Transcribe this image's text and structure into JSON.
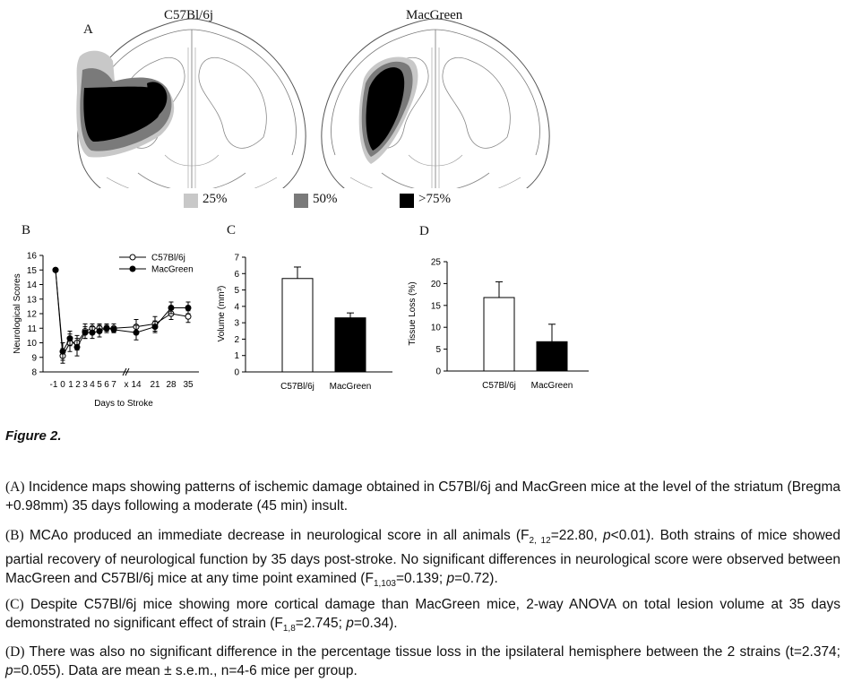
{
  "panelA": {
    "letter": "A",
    "strain_left": "C57Bl/6j",
    "strain_right": "MacGreen",
    "legend": [
      {
        "label": "25%",
        "color": "#c8c8c8"
      },
      {
        "label": "50%",
        "color": "#7a7a7a"
      },
      {
        "label": ">75%",
        "color": "#000000"
      }
    ]
  },
  "panelB": {
    "letter": "B",
    "chart_data": {
      "type": "line",
      "title": "",
      "xlabel": "Days to Stroke",
      "ylabel": "Neurological Scores",
      "ylim": [
        8,
        16
      ],
      "yticks": [
        8,
        9,
        10,
        11,
        12,
        13,
        14,
        15,
        16
      ],
      "xtick_labels": [
        "-1",
        "0",
        "1",
        "2",
        "3",
        "4",
        "5",
        "6",
        "7",
        "x",
        "14",
        "21",
        "28",
        "35"
      ],
      "x": [
        -1,
        0,
        1,
        2,
        3,
        4,
        5,
        6,
        7,
        14,
        21,
        28,
        35
      ],
      "series": [
        {
          "name": "C57Bl/6j",
          "marker": "open-circle",
          "values": [
            15,
            9.1,
            10.0,
            10.0,
            10.8,
            11.0,
            11.0,
            11.0,
            11.0,
            11.1,
            11.3,
            12.0,
            11.8
          ],
          "errors": [
            0,
            0.5,
            0.6,
            0.5,
            0.5,
            0.3,
            0.3,
            0.3,
            0.3,
            0.5,
            0.5,
            0.4,
            0.4
          ]
        },
        {
          "name": "MacGreen",
          "marker": "filled-circle",
          "values": [
            15,
            9.4,
            10.3,
            9.7,
            10.7,
            10.7,
            10.8,
            11.0,
            10.9,
            10.7,
            11.1,
            12.4,
            12.4
          ],
          "errors": [
            0,
            0.6,
            0.5,
            0.6,
            0.4,
            0.4,
            0.4,
            0.2,
            0.2,
            0.5,
            0.4,
            0.4,
            0.4
          ]
        }
      ]
    }
  },
  "panelC": {
    "letter": "C",
    "chart_data": {
      "type": "bar",
      "categories": [
        "C57Bl/6j",
        "MacGreen"
      ],
      "values": [
        5.7,
        3.3
      ],
      "errors": [
        0.7,
        0.3
      ],
      "colors": [
        "#ffffff",
        "#000000"
      ],
      "title": "",
      "xlabel": "",
      "ylabel": "Volume (mm³)",
      "ylim": [
        0,
        7
      ],
      "yticks": [
        0,
        1,
        2,
        3,
        4,
        5,
        6,
        7
      ]
    }
  },
  "panelD": {
    "letter": "D",
    "chart_data": {
      "type": "bar",
      "categories": [
        "C57Bl/6j",
        "MacGreen"
      ],
      "values": [
        16.8,
        6.7
      ],
      "errors": [
        3.6,
        4.0
      ],
      "colors": [
        "#ffffff",
        "#000000"
      ],
      "title": "",
      "xlabel": "",
      "ylabel": "Tissue Loss (%)",
      "ylim": [
        0,
        25
      ],
      "yticks": [
        0,
        5,
        10,
        15,
        20,
        25
      ]
    }
  },
  "figure_title": "Figure 2.",
  "captions": {
    "a": {
      "label": "(A)",
      "text": "Incidence maps showing patterns of ischemic damage obtained in C57Bl/6j and MacGreen mice at the level of the striatum (Bregma +0.98mm) 35 days following a moderate (45 min) insult."
    },
    "b": {
      "label": "(B)",
      "p1": "MCAo produced an immediate decrease in neurological score in all animals (F",
      "sub1": "2, 12",
      "p2": "=22.80, ",
      "p3": "p",
      "p4": "<0.01). Both strains of mice showed partial recovery of neurological function by 35 days post-stroke. No significant differences in neurological score were observed between MacGreen and C57Bl/6j mice at any time point examined (F",
      "sub2": "1,103",
      "p5": "=0.139; ",
      "p6": "p",
      "p7": "=0.72)."
    },
    "c": {
      "label": "(C)",
      "p1": "Despite C57Bl/6j mice showing more cortical damage than MacGreen mice, 2-way ANOVA on total lesion volume at 35 days demonstrated no significant effect of strain (F",
      "sub1": "1,8",
      "p2": "=2.745; ",
      "p3": "p",
      "p4": "=0.34)."
    },
    "d": {
      "label": "(D)",
      "p1": "There was also no significant difference in the percentage tissue loss in the ipsilateral hemisphere between the 2 strains (t=2.374; ",
      "p2": "p",
      "p3": "=0.055). Data are mean ± s.e.m., n=4-6 mice per group."
    }
  }
}
